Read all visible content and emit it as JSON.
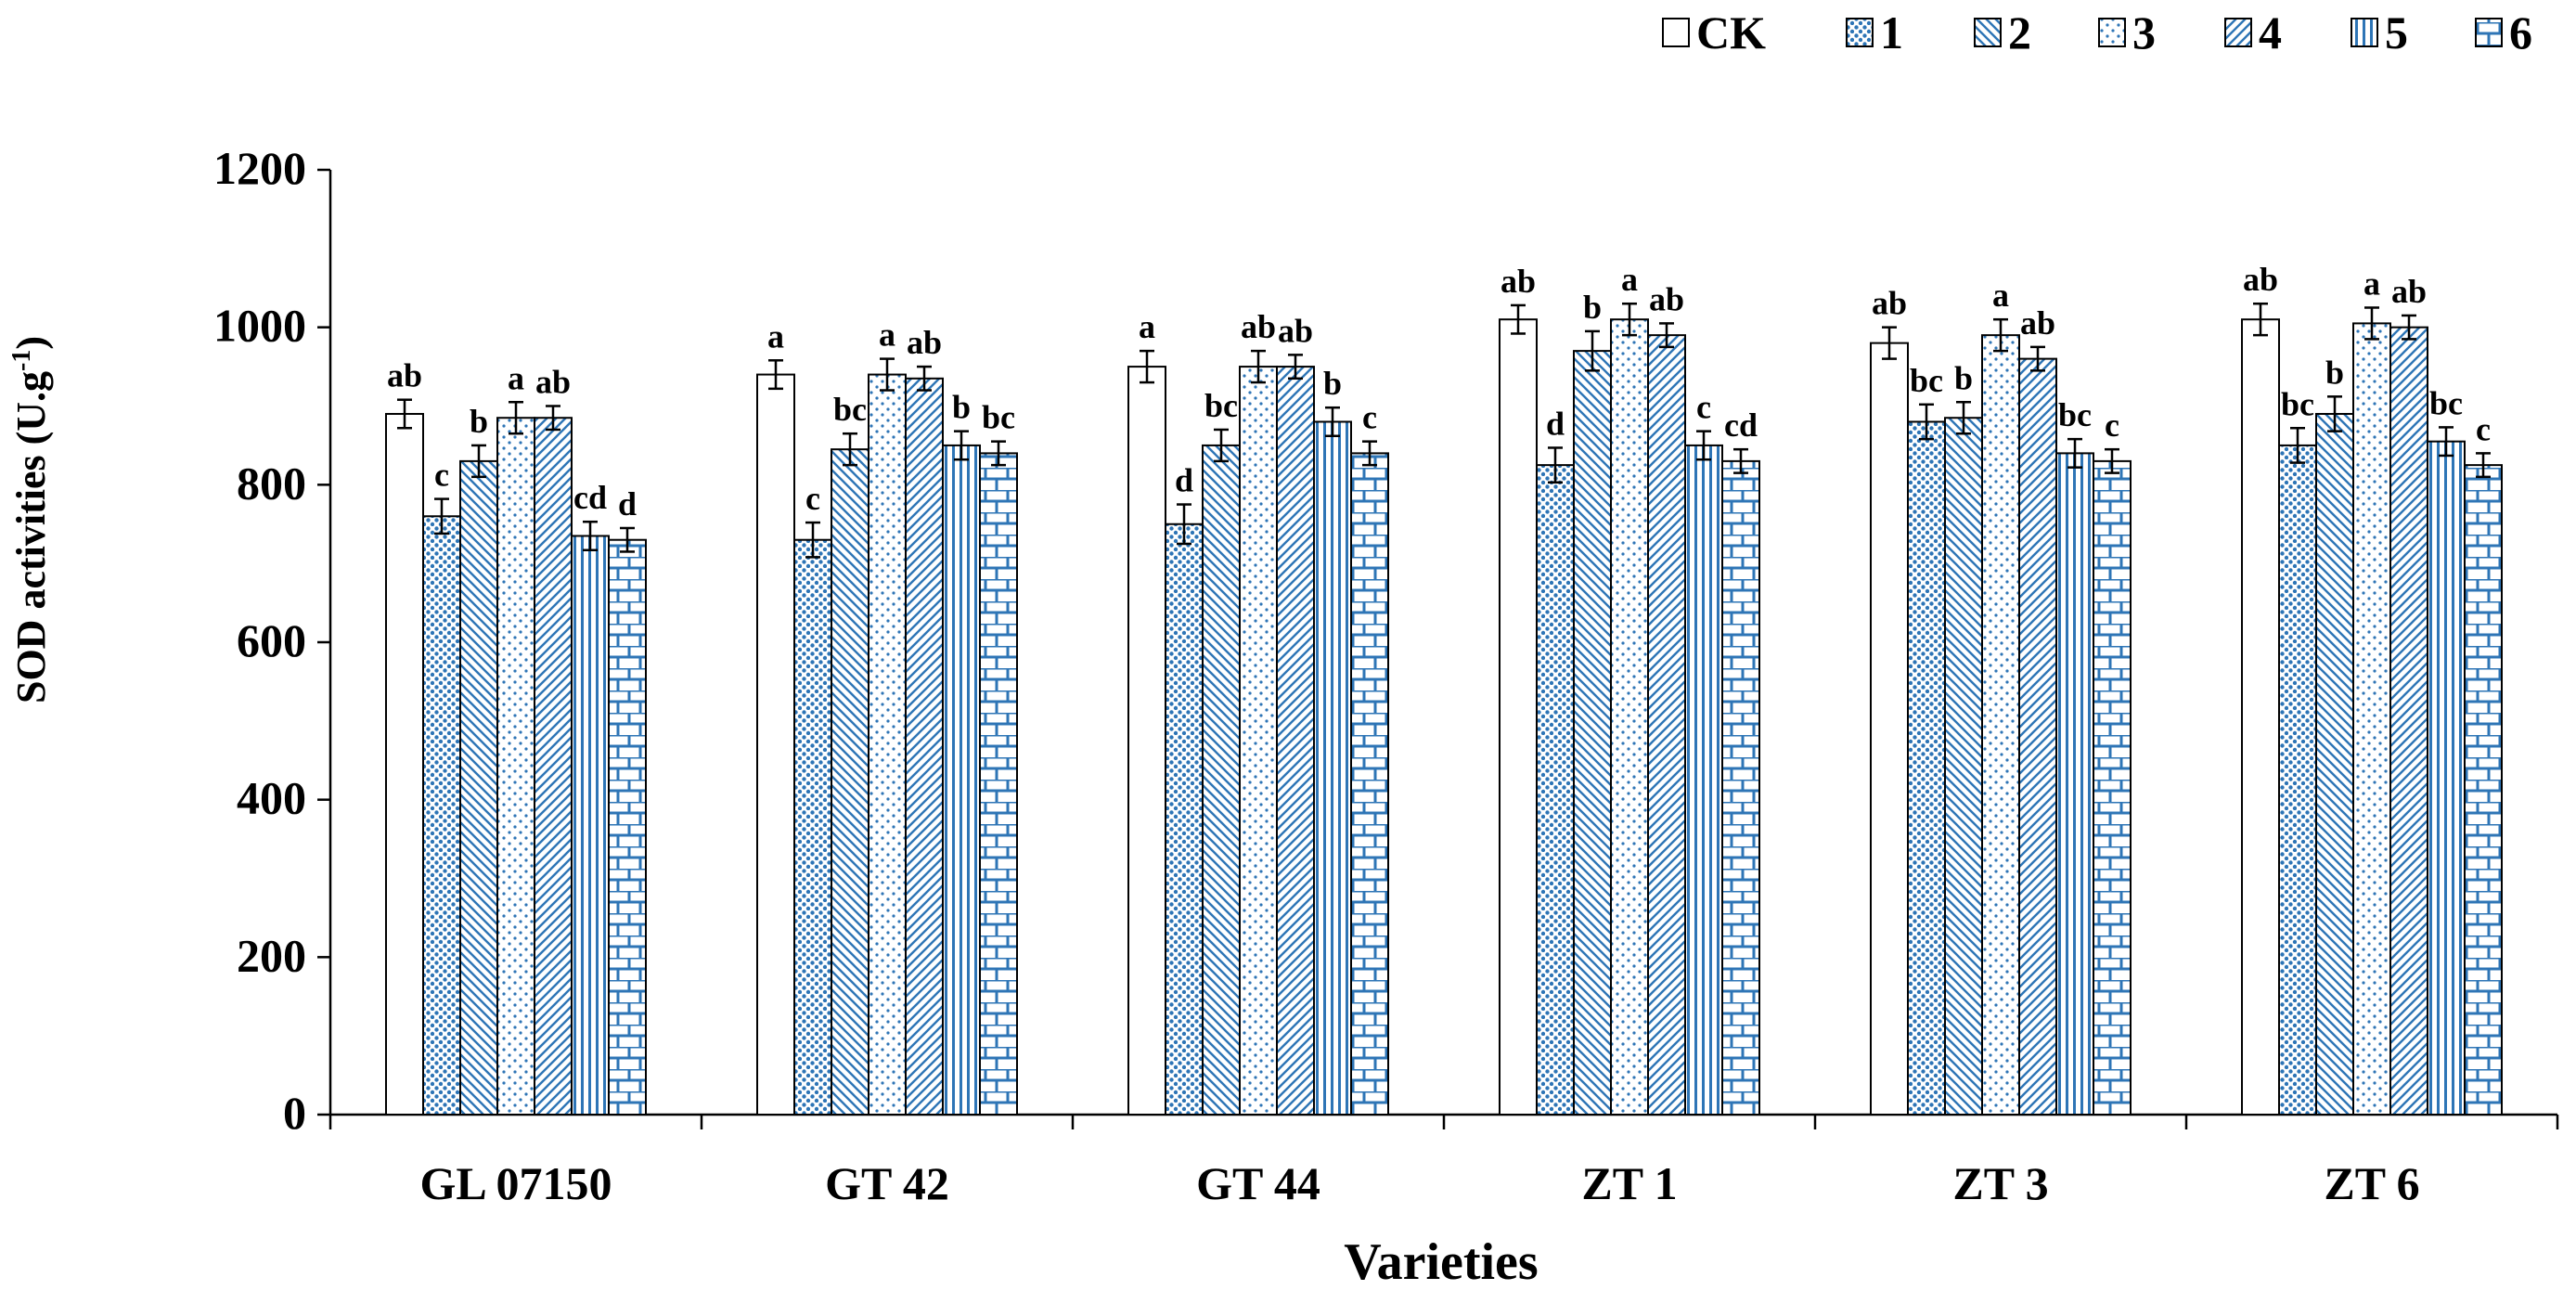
{
  "chart_data": {
    "type": "bar",
    "title": "",
    "xlabel": "Varieties",
    "ylabel": "SOD activities (U.g",
    "ylabel_sup": "-1",
    "ylabel_close": ")",
    "ylim": [
      0,
      1200
    ],
    "yticks": [
      0,
      200,
      400,
      600,
      800,
      1000,
      1200
    ],
    "grid": false,
    "legend_position": "top-right",
    "categories": [
      "GL 07150",
      "GT 42",
      "GT 44",
      "ZT 1",
      "ZT 3",
      "ZT 6"
    ],
    "series": [
      {
        "name": "CK",
        "pattern": "none",
        "values": [
          890,
          940,
          950,
          1010,
          980,
          1010
        ],
        "errors": [
          18,
          18,
          20,
          18,
          20,
          20
        ],
        "labels": [
          "ab",
          "a",
          "a",
          "ab",
          "ab",
          "ab"
        ]
      },
      {
        "name": "1",
        "pattern": "dense-dots",
        "values": [
          760,
          730,
          750,
          825,
          880,
          850
        ],
        "errors": [
          22,
          22,
          25,
          22,
          22,
          22
        ],
        "labels": [
          "c",
          "c",
          "d",
          "d",
          "bc",
          "bc"
        ]
      },
      {
        "name": "2",
        "pattern": "diag-back",
        "values": [
          830,
          845,
          850,
          970,
          885,
          890
        ],
        "errors": [
          20,
          20,
          20,
          25,
          20,
          22
        ],
        "labels": [
          "b",
          "bc",
          "bc",
          "b",
          "b",
          "b"
        ]
      },
      {
        "name": "3",
        "pattern": "sparse-dots",
        "values": [
          885,
          940,
          950,
          1010,
          990,
          1005
        ],
        "errors": [
          20,
          20,
          20,
          20,
          20,
          20
        ],
        "labels": [
          "a",
          "a",
          "ab",
          "a",
          "a",
          "a"
        ]
      },
      {
        "name": "4",
        "pattern": "diag-forward",
        "values": [
          885,
          935,
          950,
          990,
          960,
          1000
        ],
        "errors": [
          15,
          15,
          15,
          15,
          15,
          15
        ],
        "labels": [
          "ab",
          "ab",
          "ab",
          "ab",
          "ab",
          "ab"
        ]
      },
      {
        "name": "5",
        "pattern": "vertical",
        "values": [
          735,
          850,
          880,
          850,
          840,
          855
        ],
        "errors": [
          18,
          18,
          18,
          18,
          18,
          18
        ],
        "labels": [
          "cd",
          "b",
          "b",
          "c",
          "bc",
          "bc"
        ]
      },
      {
        "name": "6",
        "pattern": "brick",
        "values": [
          730,
          840,
          840,
          830,
          830,
          825
        ],
        "errors": [
          15,
          15,
          15,
          15,
          15,
          15
        ],
        "labels": [
          "d",
          "bc",
          "c",
          "cd",
          "c",
          "c"
        ]
      }
    ],
    "colors": {
      "bar_stroke": "#000000",
      "pattern": "#2e75b6",
      "ck_fill": "#ffffff"
    }
  }
}
